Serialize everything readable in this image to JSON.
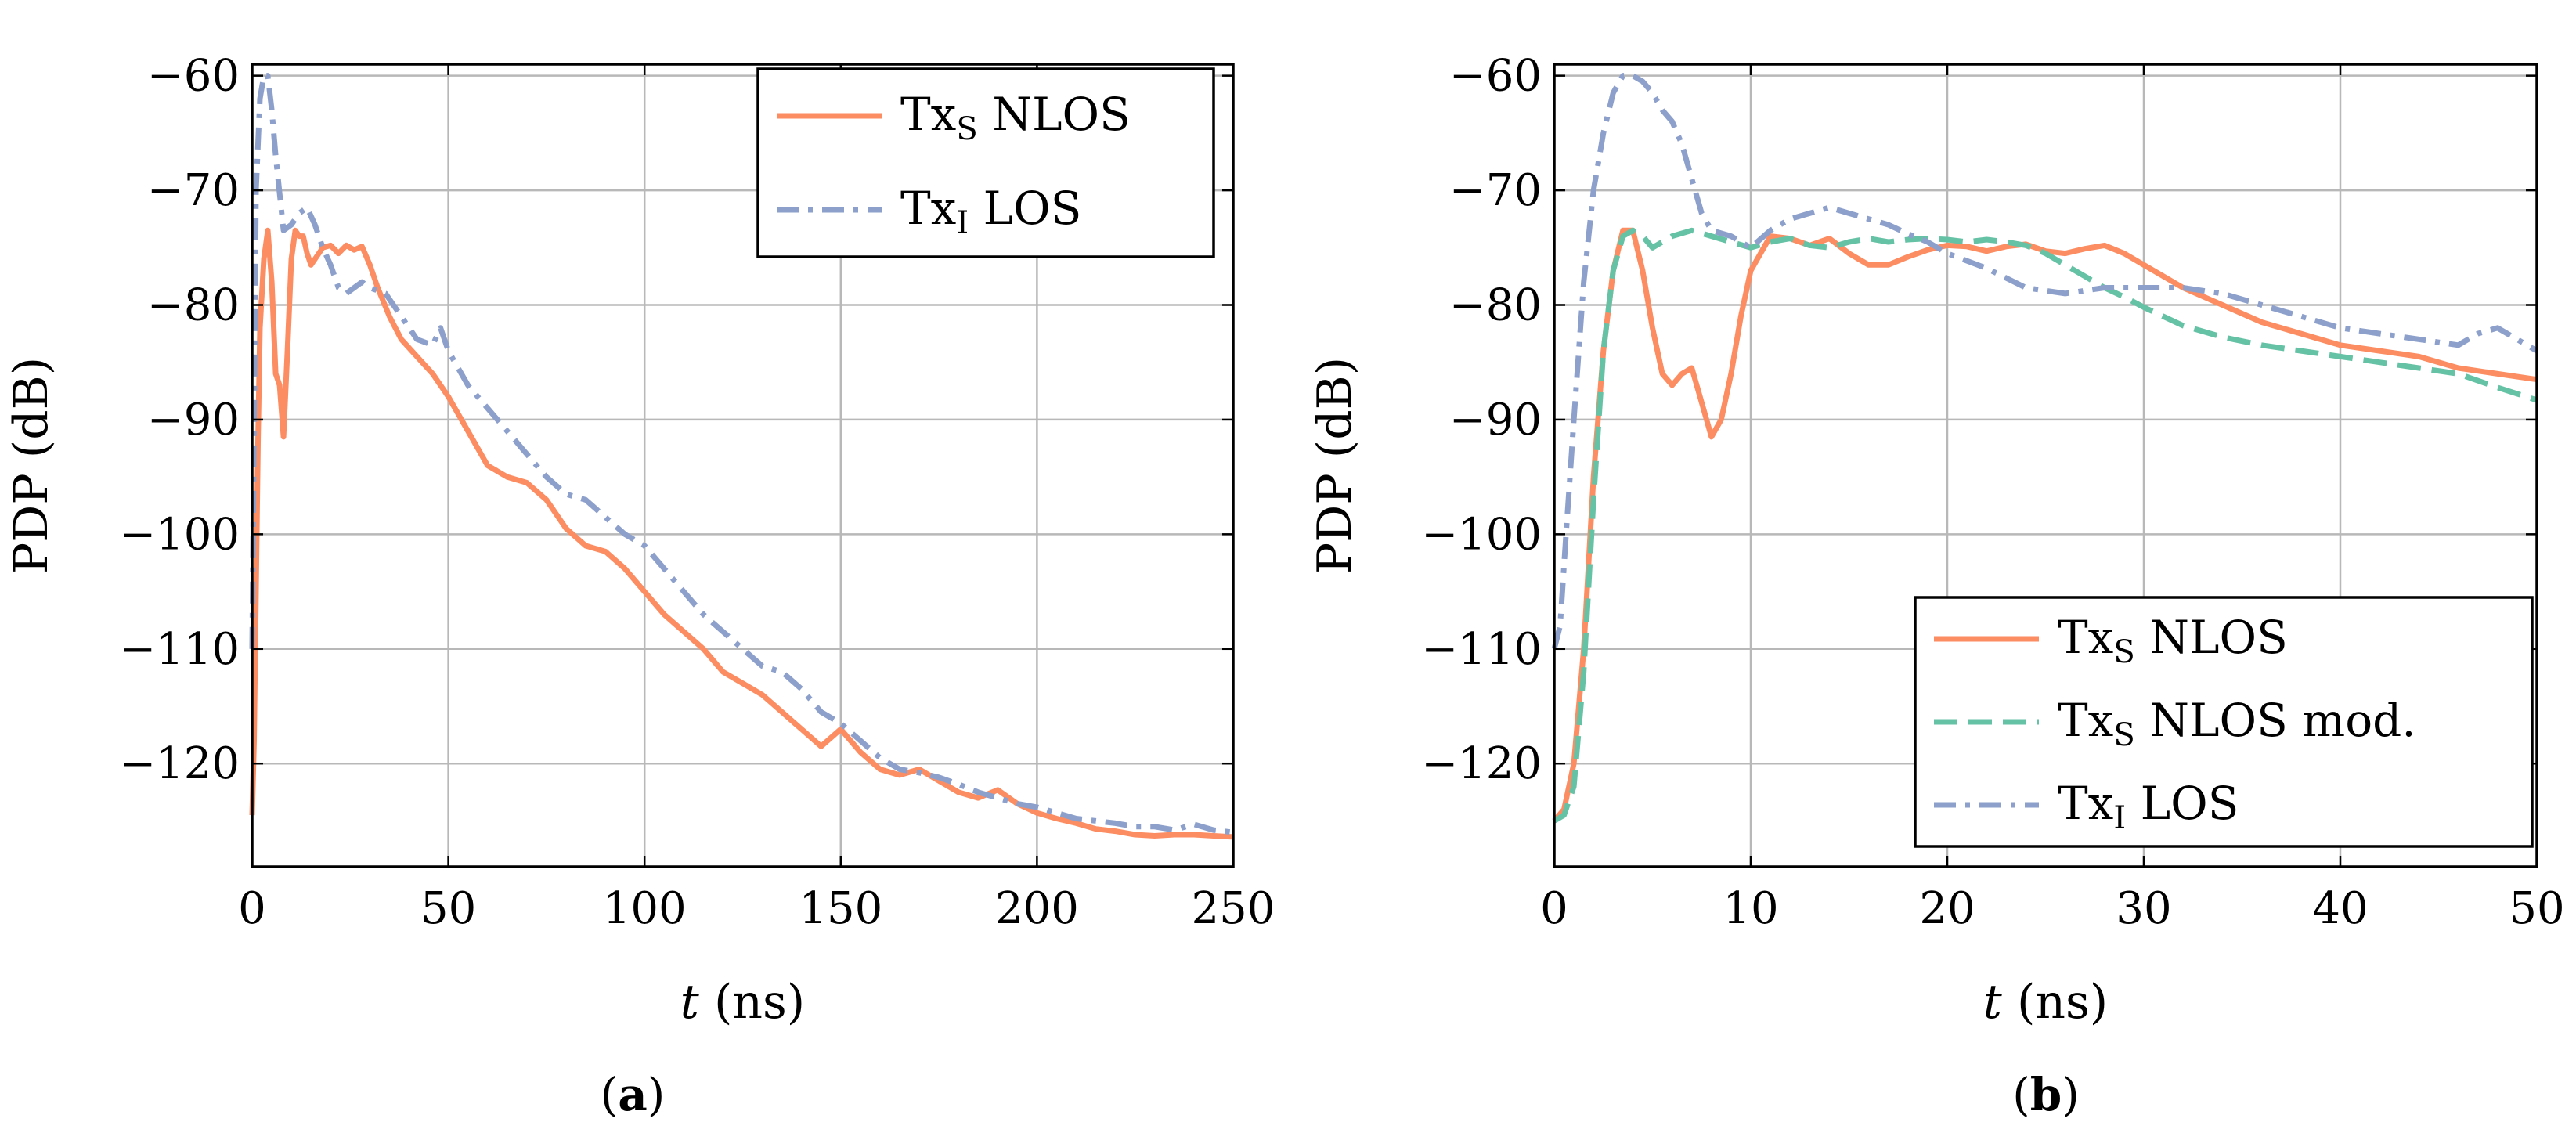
{
  "chart_data": [
    {
      "panel": "(a)",
      "panel_letter": "a",
      "type": "line",
      "xlabel_var": "t",
      "xlabel_unit": "(ns)",
      "ylabel": "PDP (dB)",
      "xlim": [
        0,
        250
      ],
      "ylim": [
        -129,
        -59
      ],
      "xticks": [
        0,
        50,
        100,
        150,
        200,
        250
      ],
      "yticks": [
        -60,
        -70,
        -80,
        -90,
        -100,
        -110,
        -120
      ],
      "xtick_labels": [
        "0",
        "50",
        "100",
        "150",
        "200",
        "250"
      ],
      "ytick_labels": [
        "−60",
        "−70",
        "−80",
        "−90",
        "−100",
        "−110",
        "−120"
      ],
      "grid": true,
      "legend_position": "top-right",
      "series": [
        {
          "name": "Tx_S NLOS",
          "name_main": "Tx",
          "name_sub": "S",
          "name_rest": " NLOS",
          "color": "#fc8d62",
          "style": "solid",
          "x": [
            0,
            0.5,
            1,
            1.5,
            2,
            3,
            4,
            5,
            6,
            7,
            8,
            9,
            10,
            11,
            12,
            13,
            14,
            15,
            16,
            18,
            20,
            22,
            24,
            26,
            28,
            30,
            32,
            35,
            38,
            42,
            46,
            50,
            55,
            60,
            65,
            70,
            75,
            80,
            85,
            90,
            95,
            100,
            105,
            110,
            115,
            120,
            125,
            130,
            135,
            140,
            145,
            150,
            155,
            160,
            165,
            170,
            175,
            180,
            185,
            190,
            195,
            200,
            205,
            210,
            215,
            220,
            225,
            230,
            235,
            240,
            245,
            250
          ],
          "y": [
            -124.5,
            -118,
            -105,
            -92,
            -82,
            -76,
            -73.5,
            -78,
            -86,
            -87,
            -91.5,
            -84,
            -76,
            -73.5,
            -74,
            -74,
            -75.5,
            -76.5,
            -76,
            -75,
            -74.8,
            -75.5,
            -74.8,
            -75.2,
            -74.9,
            -76.5,
            -78.5,
            -81,
            -83,
            -84.5,
            -86,
            -88,
            -91,
            -94,
            -95,
            -95.5,
            -97,
            -99.5,
            -101,
            -101.5,
            -103,
            -105,
            -107,
            -108.5,
            -110,
            -112,
            -113,
            -114,
            -115.5,
            -117,
            -118.5,
            -117,
            -119,
            -120.5,
            -121,
            -120.5,
            -121.5,
            -122.5,
            -123,
            -122.3,
            -123.5,
            -124.3,
            -124.8,
            -125.2,
            -125.7,
            -125.9,
            -126.2,
            -126.3,
            -126.2,
            -126.2,
            -126.3,
            -126.4
          ]
        },
        {
          "name": "Tx_I LOS",
          "name_main": "Tx",
          "name_sub": "I",
          "name_rest": " LOS",
          "color": "#8da0cb",
          "style": "dashdot",
          "x": [
            0,
            0.5,
            1,
            2,
            3,
            4,
            5,
            6,
            8,
            10,
            12,
            14,
            16,
            18,
            20,
            22,
            24,
            26,
            28,
            30,
            34,
            38,
            42,
            46,
            48,
            50,
            55,
            60,
            65,
            70,
            75,
            80,
            85,
            90,
            95,
            100,
            105,
            110,
            115,
            120,
            125,
            130,
            135,
            140,
            145,
            150,
            155,
            160,
            165,
            170,
            175,
            180,
            185,
            190,
            195,
            200,
            205,
            210,
            215,
            220,
            225,
            230,
            235,
            240,
            245,
            250
          ],
          "y": [
            -110,
            -90,
            -70,
            -62,
            -60,
            -60,
            -63,
            -67,
            -73.5,
            -73,
            -72,
            -71.5,
            -73,
            -75,
            -76.5,
            -78.5,
            -79,
            -78.5,
            -78,
            -78.5,
            -79,
            -81,
            -83,
            -83.5,
            -82,
            -84,
            -87,
            -89,
            -91,
            -93,
            -95,
            -96.5,
            -97,
            -98.5,
            -100,
            -101,
            -103,
            -105,
            -107,
            -108.5,
            -110,
            -111.5,
            -112,
            -113.5,
            -115.5,
            -116.5,
            -118,
            -119.5,
            -120.5,
            -120.8,
            -121.2,
            -121.8,
            -122.5,
            -123,
            -123.5,
            -123.8,
            -124.3,
            -124.8,
            -125,
            -125.2,
            -125.5,
            -125.5,
            -125.8,
            -125.3,
            -125.8,
            -126
          ]
        }
      ]
    },
    {
      "panel": "(b)",
      "panel_letter": "b",
      "type": "line",
      "xlabel_var": "t",
      "xlabel_unit": "(ns)",
      "ylabel": "PDP (dB)",
      "xlim": [
        0,
        50
      ],
      "ylim": [
        -129,
        -59
      ],
      "xticks": [
        0,
        10,
        20,
        30,
        40,
        50
      ],
      "yticks": [
        -60,
        -70,
        -80,
        -90,
        -100,
        -110,
        -120
      ],
      "xtick_labels": [
        "0",
        "10",
        "20",
        "30",
        "40",
        "50"
      ],
      "ytick_labels": [
        "−60",
        "−70",
        "−80",
        "−90",
        "−100",
        "−110",
        "−120"
      ],
      "grid": true,
      "legend_position": "bottom-right",
      "series": [
        {
          "name": "Tx_S NLOS",
          "name_main": "Tx",
          "name_sub": "S",
          "name_rest": " NLOS",
          "color": "#fc8d62",
          "style": "solid",
          "x": [
            0,
            0.5,
            1,
            1.5,
            2,
            2.5,
            3,
            3.5,
            4,
            4.5,
            5,
            5.5,
            6,
            6.5,
            7,
            7.5,
            8,
            8.5,
            9,
            9.5,
            10,
            11,
            12,
            13,
            14,
            15,
            16,
            17,
            18,
            19,
            20,
            21,
            22,
            23,
            24,
            25,
            26,
            27,
            28,
            29,
            30,
            32,
            34,
            36,
            38,
            40,
            42,
            44,
            46,
            48,
            50
          ],
          "y": [
            -125,
            -124,
            -120,
            -110,
            -95,
            -84,
            -77,
            -73.5,
            -73.5,
            -77,
            -82,
            -86,
            -87,
            -86,
            -85.5,
            -88.5,
            -91.5,
            -90,
            -86,
            -81,
            -77,
            -74,
            -74.2,
            -74.8,
            -74.2,
            -75.5,
            -76.5,
            -76.5,
            -75.8,
            -75.2,
            -74.8,
            -74.9,
            -75.3,
            -74.9,
            -74.7,
            -75.3,
            -75.5,
            -75.1,
            -74.8,
            -75.5,
            -76.5,
            -78.5,
            -80,
            -81.5,
            -82.5,
            -83.5,
            -84,
            -84.5,
            -85.5,
            -86,
            -86.5
          ]
        },
        {
          "name": "Tx_S NLOS mod.",
          "name_main": "Tx",
          "name_sub": "S",
          "name_rest": " NLOS mod.",
          "color": "#66c2a5",
          "style": "dashed",
          "x": [
            0,
            0.5,
            1,
            1.5,
            2,
            2.5,
            3,
            3.5,
            4,
            4.5,
            5,
            6,
            7,
            8,
            9,
            10,
            11,
            12,
            13,
            14,
            15,
            16,
            17,
            18,
            19,
            20,
            21,
            22,
            23,
            24,
            25,
            26,
            27,
            28,
            29,
            30,
            32,
            34,
            36,
            38,
            40,
            42,
            44,
            46,
            48,
            50
          ],
          "y": [
            -125,
            -124.5,
            -122,
            -112,
            -97,
            -84,
            -77,
            -74,
            -73.5,
            -74,
            -75,
            -74,
            -73.5,
            -74,
            -74.5,
            -75,
            -74.5,
            -74.2,
            -74.8,
            -75,
            -74.5,
            -74.2,
            -74.5,
            -74.3,
            -74.2,
            -74.3,
            -74.5,
            -74.3,
            -74.5,
            -74.8,
            -75.5,
            -76.5,
            -77.5,
            -78.5,
            -79.3,
            -80.2,
            -81.8,
            -82.8,
            -83.5,
            -84,
            -84.5,
            -85,
            -85.5,
            -86,
            -87.2,
            -88.3
          ]
        },
        {
          "name": "Tx_I LOS",
          "name_main": "Tx",
          "name_sub": "I",
          "name_rest": " LOS",
          "color": "#8da0cb",
          "style": "dashdot",
          "x": [
            0,
            0.3,
            0.6,
            1,
            1.5,
            2,
            2.5,
            3,
            3.5,
            4,
            4.5,
            5,
            5.5,
            6,
            6.5,
            7,
            7.5,
            8,
            9,
            10,
            11,
            12,
            13,
            14,
            15,
            16,
            17,
            18,
            19,
            20,
            22,
            24,
            26,
            28,
            30,
            32,
            34,
            36,
            38,
            40,
            42,
            44,
            46,
            47,
            48,
            49,
            50
          ],
          "y": [
            -110,
            -108,
            -100,
            -90,
            -78,
            -70,
            -65,
            -61.5,
            -60,
            -60,
            -60.5,
            -61.5,
            -63,
            -64,
            -66,
            -69,
            -72,
            -73.5,
            -74,
            -75,
            -73.5,
            -72.5,
            -72,
            -71.5,
            -72,
            -72.5,
            -73,
            -73.8,
            -74.5,
            -75.5,
            -76.8,
            -78.5,
            -79,
            -78.5,
            -78.5,
            -78.5,
            -79,
            -80,
            -81,
            -82,
            -82.5,
            -83,
            -83.5,
            -82.5,
            -82,
            -83,
            -84
          ]
        }
      ]
    }
  ]
}
